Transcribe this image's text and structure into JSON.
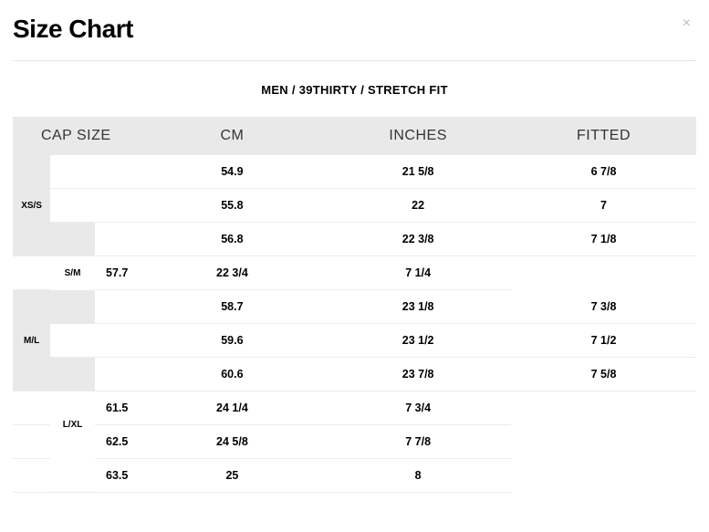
{
  "title": "Size Chart",
  "subtitle": "MEN / 39THIRTY / STRETCH FIT",
  "close_label": "×",
  "table": {
    "headers": {
      "cap_size": "CAP SIZE",
      "cm": "CM",
      "inches": "INCHES",
      "fitted": "FITTED"
    },
    "sizes": [
      "XS/S",
      "S/M",
      "M/L",
      "L/XL"
    ],
    "rows": [
      {
        "cm": "54.9",
        "inches": "21 5/8",
        "fitted": "6 7/8"
      },
      {
        "cm": "55.8",
        "inches": "22",
        "fitted": "7"
      },
      {
        "cm": "56.8",
        "inches": "22 3/8",
        "fitted": "7 1/8"
      },
      {
        "cm": "57.7",
        "inches": "22 3/4",
        "fitted": "7 1/4"
      },
      {
        "cm": "58.7",
        "inches": "23 1/8",
        "fitted": "7 3/8"
      },
      {
        "cm": "59.6",
        "inches": "23 1/2",
        "fitted": "7 1/2"
      },
      {
        "cm": "60.6",
        "inches": "23 7/8",
        "fitted": "7 5/8"
      },
      {
        "cm": "61.5",
        "inches": "24 1/4",
        "fitted": "7 3/4"
      },
      {
        "cm": "62.5",
        "inches": "24 5/8",
        "fitted": "7 7/8"
      },
      {
        "cm": "63.5",
        "inches": "25",
        "fitted": "8"
      }
    ],
    "colors": {
      "header_bg": "#e9e9e9",
      "row_border": "#ececec",
      "background": "#ffffff",
      "text": "#000000"
    }
  }
}
